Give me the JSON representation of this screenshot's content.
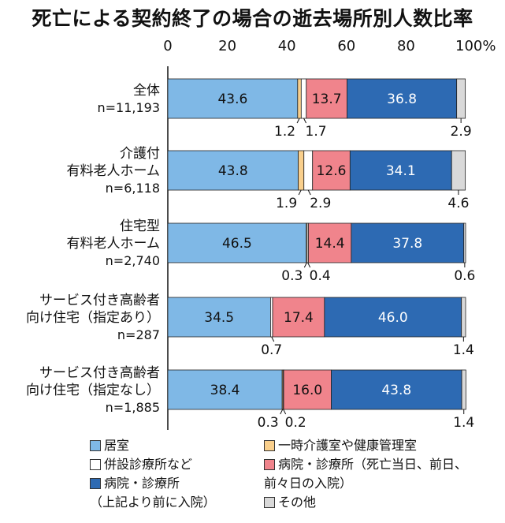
{
  "chart_data": {
    "type": "bar",
    "orientation": "horizontal",
    "stacked": true,
    "title": "死亡による契約終了の場合の逝去場所別人数比率",
    "x_ticks": [
      "0",
      "20",
      "40",
      "60",
      "80",
      "100%"
    ],
    "xlim": [
      0,
      100
    ],
    "categories": [
      {
        "lines": [
          "全体",
          "n=11,193"
        ]
      },
      {
        "lines": [
          "介護付",
          "有料老人ホーム",
          "n=6,118"
        ]
      },
      {
        "lines": [
          "住宅型",
          "有料老人ホーム",
          "n=2,740"
        ]
      },
      {
        "lines": [
          "サービス付き高齢者",
          "向け住宅（指定あり）",
          "n=287"
        ]
      },
      {
        "lines": [
          "サービス付き高齢者",
          "向け住宅（指定なし）",
          "n=1,885"
        ]
      }
    ],
    "series": [
      {
        "name": "居室",
        "color": "#7fb8e6",
        "values": [
          43.6,
          43.8,
          46.5,
          34.5,
          38.4
        ]
      },
      {
        "name": "一時介護室や健康管理室",
        "color": "#f9cf8c",
        "values": [
          1.2,
          1.9,
          0.3,
          0,
          0.3
        ]
      },
      {
        "name": "併設診療所など",
        "color": "#ffffff",
        "values": [
          1.7,
          2.9,
          0.4,
          0.7,
          0.2
        ]
      },
      {
        "name": "病院・診療所（死亡当日、前日、前々日の入院）",
        "color": "#f0848c",
        "values": [
          13.7,
          12.6,
          14.4,
          17.4,
          16.0
        ]
      },
      {
        "name": "病院・診療所（上記より前に入院）",
        "color": "#2d6ab3",
        "values": [
          36.8,
          34.1,
          37.8,
          46.0,
          43.8
        ]
      },
      {
        "name": "その他",
        "color": "#d9d9d9",
        "values": [
          2.9,
          4.6,
          0.6,
          1.4,
          1.4
        ]
      }
    ],
    "inside_labels": [
      [
        "43.6",
        "13.7",
        "36.8"
      ],
      [
        "43.8",
        "12.6",
        "34.1"
      ],
      [
        "46.5",
        "14.4",
        "37.8"
      ],
      [
        "34.5",
        "17.4",
        "46.0"
      ],
      [
        "38.4",
        "16.0",
        "43.8"
      ]
    ],
    "below_labels": [
      {
        "left": "1.2",
        "mid": "1.7",
        "right": "2.9"
      },
      {
        "left": "1.9",
        "mid": "2.9",
        "right": "4.6"
      },
      {
        "left": "0.3",
        "mid": "0.4",
        "right": "0.6"
      },
      {
        "left": "",
        "mid": "0.7",
        "right": "1.4"
      },
      {
        "left": "0.3",
        "mid": "0.2",
        "right": "1.4"
      }
    ]
  },
  "legend": {
    "col1": [
      {
        "text": "居室",
        "color": "#7fb8e6"
      },
      {
        "text": "併設診療所など",
        "color": "#ffffff"
      },
      {
        "text": "病院・診療所",
        "color": "#2d6ab3"
      },
      {
        "text": "（上記より前に入院）",
        "color": ""
      }
    ],
    "col2": [
      {
        "text": "一時介護室や健康管理室",
        "color": "#f9cf8c"
      },
      {
        "text": "病院・診療所（死亡当日、前日、",
        "color": "#f0848c"
      },
      {
        "text": "前々日の入院）",
        "color": ""
      },
      {
        "text": "その他",
        "color": "#d9d9d9"
      }
    ]
  }
}
